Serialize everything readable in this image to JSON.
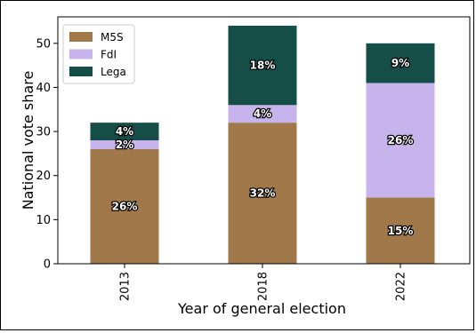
{
  "chart_data": {
    "type": "bar",
    "stacked": true,
    "categories": [
      "2013",
      "2018",
      "2022"
    ],
    "series": [
      {
        "name": "M5S",
        "color": "#a0784a",
        "values": [
          26,
          32,
          15
        ],
        "labels": [
          "26%",
          "32%",
          "15%"
        ]
      },
      {
        "name": "FdI",
        "color": "#c8b4ec",
        "values": [
          2,
          4,
          26
        ],
        "labels": [
          "2%",
          "4%",
          "26%"
        ]
      },
      {
        "name": "Lega",
        "color": "#154d47",
        "values": [
          4,
          18,
          9
        ],
        "labels": [
          "4%",
          "18%",
          "9%"
        ]
      }
    ],
    "xlabel": "Year of general election",
    "ylabel": "National vote share",
    "ylim": [
      0,
      56
    ],
    "yticks": [
      0,
      10,
      20,
      30,
      40,
      50
    ],
    "legend_position": "top-left",
    "grid": false
  }
}
